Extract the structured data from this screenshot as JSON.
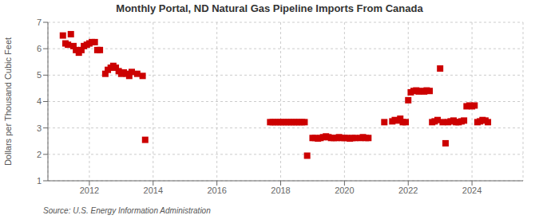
{
  "chart_data": {
    "type": "scatter",
    "title": "Monthly Portal, ND Natural Gas Pipeline Imports From Canada",
    "ylabel": "Dollars per Thousand Cubic Feet",
    "annotations": [
      "Source: U.S. Energy Information Administration"
    ],
    "color": "#cc0000",
    "marker": "square",
    "grid": true,
    "xlim": [
      2010.7,
      2025.6
    ],
    "xticks": [
      2012,
      2014,
      2016,
      2018,
      2020,
      2022,
      2024
    ],
    "ylim": [
      1,
      7
    ],
    "yticks": [
      1,
      2,
      3,
      4,
      5,
      6,
      7
    ],
    "x": [
      2011.17,
      2011.25,
      2011.33,
      2011.42,
      2011.5,
      2011.58,
      2011.67,
      2011.75,
      2011.83,
      2011.92,
      2012.0,
      2012.08,
      2012.17,
      2012.25,
      2012.33,
      2012.5,
      2012.58,
      2012.67,
      2012.75,
      2012.83,
      2012.92,
      2013.0,
      2013.08,
      2013.17,
      2013.25,
      2013.33,
      2013.5,
      2013.67,
      2013.75,
      2017.67,
      2017.75,
      2017.83,
      2017.92,
      2018.0,
      2018.08,
      2018.17,
      2018.25,
      2018.33,
      2018.42,
      2018.5,
      2018.58,
      2018.67,
      2018.75,
      2018.83,
      2019.0,
      2019.08,
      2019.17,
      2019.25,
      2019.33,
      2019.42,
      2019.5,
      2019.58,
      2019.67,
      2019.75,
      2019.83,
      2019.92,
      2020.0,
      2020.08,
      2020.17,
      2020.25,
      2020.33,
      2020.5,
      2020.58,
      2020.67,
      2020.75,
      2021.25,
      2021.5,
      2021.58,
      2021.67,
      2021.75,
      2021.83,
      2021.92,
      2022.0,
      2022.08,
      2022.17,
      2022.25,
      2022.33,
      2022.42,
      2022.5,
      2022.58,
      2022.67,
      2022.75,
      2022.83,
      2022.92,
      2023.0,
      2023.08,
      2023.17,
      2023.25,
      2023.33,
      2023.42,
      2023.5,
      2023.58,
      2023.67,
      2023.75,
      2023.83,
      2023.92,
      2024.0,
      2024.08,
      2024.17,
      2024.25,
      2024.33,
      2024.42,
      2024.5
    ],
    "values": [
      6.5,
      6.2,
      6.15,
      6.55,
      6.1,
      5.95,
      5.85,
      5.95,
      6.1,
      6.15,
      6.2,
      6.25,
      6.25,
      5.95,
      5.95,
      5.05,
      5.2,
      5.28,
      5.35,
      5.28,
      5.15,
      5.05,
      5.1,
      5.05,
      4.97,
      5.12,
      5.05,
      4.97,
      2.55,
      3.22,
      3.22,
      3.22,
      3.22,
      3.22,
      3.22,
      3.22,
      3.22,
      3.22,
      3.22,
      3.22,
      3.22,
      3.22,
      3.22,
      1.95,
      2.62,
      2.62,
      2.6,
      2.62,
      2.65,
      2.68,
      2.65,
      2.62,
      2.62,
      2.62,
      2.65,
      2.62,
      2.62,
      2.62,
      2.6,
      2.62,
      2.62,
      2.62,
      2.65,
      2.62,
      2.62,
      3.22,
      3.25,
      3.3,
      3.28,
      3.35,
      3.22,
      3.22,
      4.05,
      4.35,
      4.4,
      4.42,
      4.38,
      4.4,
      4.38,
      4.42,
      4.4,
      3.22,
      3.25,
      3.3,
      5.25,
      3.22,
      2.42,
      3.22,
      3.25,
      3.28,
      3.22,
      3.22,
      3.25,
      3.28,
      3.82,
      3.85,
      3.82,
      3.85,
      3.22,
      3.25,
      3.3,
      3.28,
      3.22
    ]
  }
}
